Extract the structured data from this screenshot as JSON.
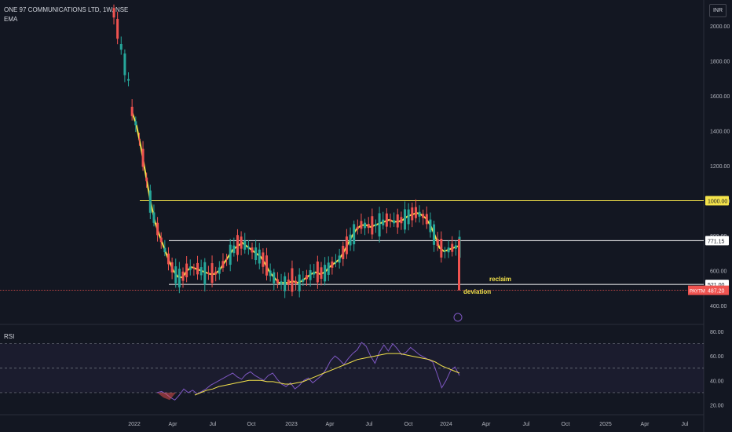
{
  "header": {
    "symbol_line": "ONE 97 COMMUNICATIONS LTD, 1W, NSE",
    "indicator": "EMA",
    "currency": "INR"
  },
  "annotations": {
    "reclaim": "reclaim",
    "deviation": "deviation"
  },
  "rsi_panel": {
    "label": "RSI"
  },
  "colors": {
    "background": "#131722",
    "up_candle": "#26a69a",
    "down_candle": "#ef5350",
    "ema": "#f5e44b",
    "rsi_line": "#7e57c2",
    "rsi_ma": "#f5e44b",
    "resistance_line": "#f5e44b",
    "level_line": "#ffffff",
    "price_line": "#ef5350"
  },
  "chart_data": [
    {
      "type": "candlestick",
      "title": "ONE 97 COMMUNICATIONS LTD, 1W, NSE",
      "ylim": [
        380,
        2050
      ],
      "y_ticks": [
        400,
        600,
        800,
        1000,
        1200,
        1400,
        1600,
        1800,
        2000
      ],
      "y_tick_labels": [
        "400.00",
        "600.00",
        "800.00",
        "1000.00",
        "1200.00",
        "1400.00",
        "1600.00",
        "1800.00",
        "2000.00"
      ],
      "x_ticks": [
        "2022",
        "Apr",
        "Jul",
        "Oct",
        "2023",
        "Apr",
        "Jul",
        "Oct",
        "2024",
        "Apr",
        "Jul",
        "Oct",
        "2025",
        "Apr",
        "Jul"
      ],
      "horizontal_levels": [
        {
          "value": 1000,
          "label": "1000.00",
          "style": "resistance"
        },
        {
          "value": 771.15,
          "label": "771.15",
          "style": "level"
        },
        {
          "value": 521.0,
          "label": "521.00",
          "style": "level"
        }
      ],
      "last_price": {
        "symbol": "PAYTM",
        "value": 487.2,
        "label": "487.20"
      },
      "ema_series": [
        1510,
        1430,
        1300,
        1150,
        1000,
        880,
        800,
        730,
        660,
        600,
        565,
        560,
        600,
        620,
        610,
        600,
        590,
        580,
        580,
        600,
        640,
        680,
        720,
        740,
        760,
        740,
        720,
        700,
        680,
        640,
        590,
        560,
        530,
        530,
        530,
        540,
        530,
        540,
        560,
        580,
        590,
        580,
        590,
        620,
        640,
        660,
        700,
        750,
        800,
        840,
        860,
        860,
        850,
        860,
        870,
        880,
        890,
        880,
        880,
        890,
        910,
        920,
        930,
        920,
        900,
        860,
        800,
        730,
        710,
        720,
        730,
        740
      ]
    },
    {
      "type": "line",
      "title": "RSI",
      "ylim": [
        20,
        80
      ],
      "y_ticks": [
        20,
        40,
        60,
        80
      ],
      "y_tick_labels": [
        "20.00",
        "40.00",
        "60.00",
        "80.00"
      ],
      "bands": [
        30,
        50,
        70
      ],
      "series": [
        {
          "name": "",
          "values": [
            30,
            31,
            29,
            26,
            24,
            28,
            33,
            30,
            32,
            29,
            31,
            33,
            36,
            38,
            40,
            42,
            44,
            46,
            43,
            41,
            45,
            47,
            44,
            42,
            40,
            44,
            46,
            41,
            37,
            35,
            38,
            33,
            36,
            40,
            42,
            38,
            41,
            44,
            49,
            56,
            60,
            57,
            53,
            58,
            62,
            65,
            71,
            68,
            60,
            54,
            63,
            69,
            64,
            70,
            66,
            61,
            63,
            67,
            64,
            61,
            59,
            57,
            55,
            45,
            34,
            40,
            48,
            51,
            44
          ]
        },
        {
          "name": "",
          "values": [
            28,
            30,
            32,
            33,
            35,
            36,
            37,
            38,
            39,
            40,
            40,
            40,
            39,
            39,
            38,
            37,
            37,
            38,
            39,
            41,
            43,
            45,
            47,
            49,
            51,
            53,
            55,
            57,
            58,
            59,
            60,
            61,
            62,
            62,
            62,
            61,
            60,
            59,
            58,
            57,
            55,
            52,
            50,
            48,
            46
          ]
        }
      ]
    }
  ]
}
